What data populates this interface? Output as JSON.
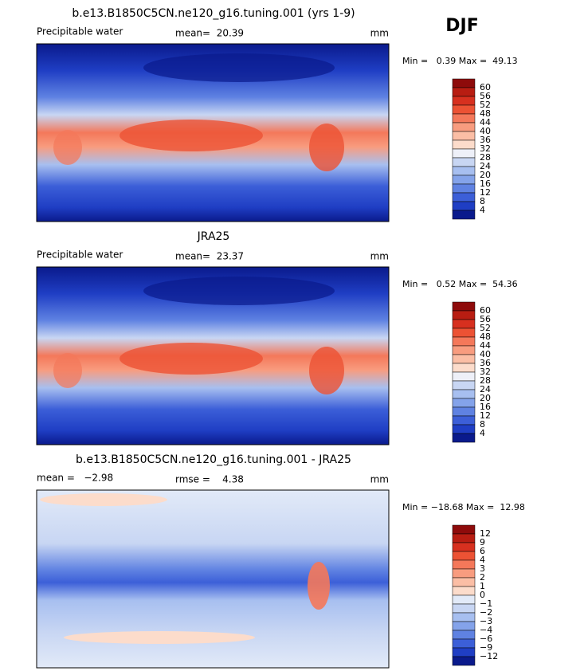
{
  "season": "DJF",
  "panels": [
    {
      "title": "b.e13.B1850C5CN.ne120_g16.tuning.001 (yrs 1-9)",
      "left_text": "Precipitable water",
      "center_text": "mean=  20.39",
      "right_text": "mm",
      "stats": "Min =   0.39 Max =  49.13",
      "colorbar": {
        "labels": [
          "60",
          "56",
          "52",
          "48",
          "44",
          "40",
          "36",
          "32",
          "28",
          "24",
          "20",
          "16",
          "12",
          "8",
          "4"
        ],
        "colors": [
          "#8e0b0b",
          "#b81d12",
          "#d7301f",
          "#ec5234",
          "#f4785a",
          "#f89c7f",
          "#fbbea5",
          "#fcdccb",
          "#eef0f8",
          "#c8d6f3",
          "#a7bff0",
          "#84a3ea",
          "#5f82e2",
          "#3c5fd8",
          "#1f3ec4",
          "#0a1a8c"
        ]
      }
    },
    {
      "title": "JRA25",
      "left_text": "Precipitable water",
      "center_text": "mean=  23.37",
      "right_text": "mm",
      "stats": "Min =   0.52 Max =  54.36",
      "colorbar": {
        "labels": [
          "60",
          "56",
          "52",
          "48",
          "44",
          "40",
          "36",
          "32",
          "28",
          "24",
          "20",
          "16",
          "12",
          "8",
          "4"
        ],
        "colors": [
          "#8e0b0b",
          "#b81d12",
          "#d7301f",
          "#ec5234",
          "#f4785a",
          "#f89c7f",
          "#fbbea5",
          "#fcdccb",
          "#eef0f8",
          "#c8d6f3",
          "#a7bff0",
          "#84a3ea",
          "#5f82e2",
          "#3c5fd8",
          "#1f3ec4",
          "#0a1a8c"
        ]
      }
    },
    {
      "title": "b.e13.B1850C5CN.ne120_g16.tuning.001 - JRA25",
      "left_text": "mean =   −2.98",
      "center_text": "rmse =    4.38",
      "right_text": "mm",
      "stats": "Min = −18.68 Max =  12.98",
      "colorbar": {
        "labels": [
          "12",
          "9",
          "6",
          "4",
          "3",
          "2",
          "1",
          "0",
          "−1",
          "−2",
          "−3",
          "−4",
          "−6",
          "−9",
          "−12"
        ],
        "colors": [
          "#8e0b0b",
          "#b81d12",
          "#d7301f",
          "#ec5234",
          "#f4785a",
          "#f89c7f",
          "#fbbea5",
          "#fcdccb",
          "#e2eaf8",
          "#c8d6f3",
          "#a7bff0",
          "#84a3ea",
          "#5f82e2",
          "#3c5fd8",
          "#1f3ec4",
          "#0a1a8c"
        ]
      }
    }
  ]
}
